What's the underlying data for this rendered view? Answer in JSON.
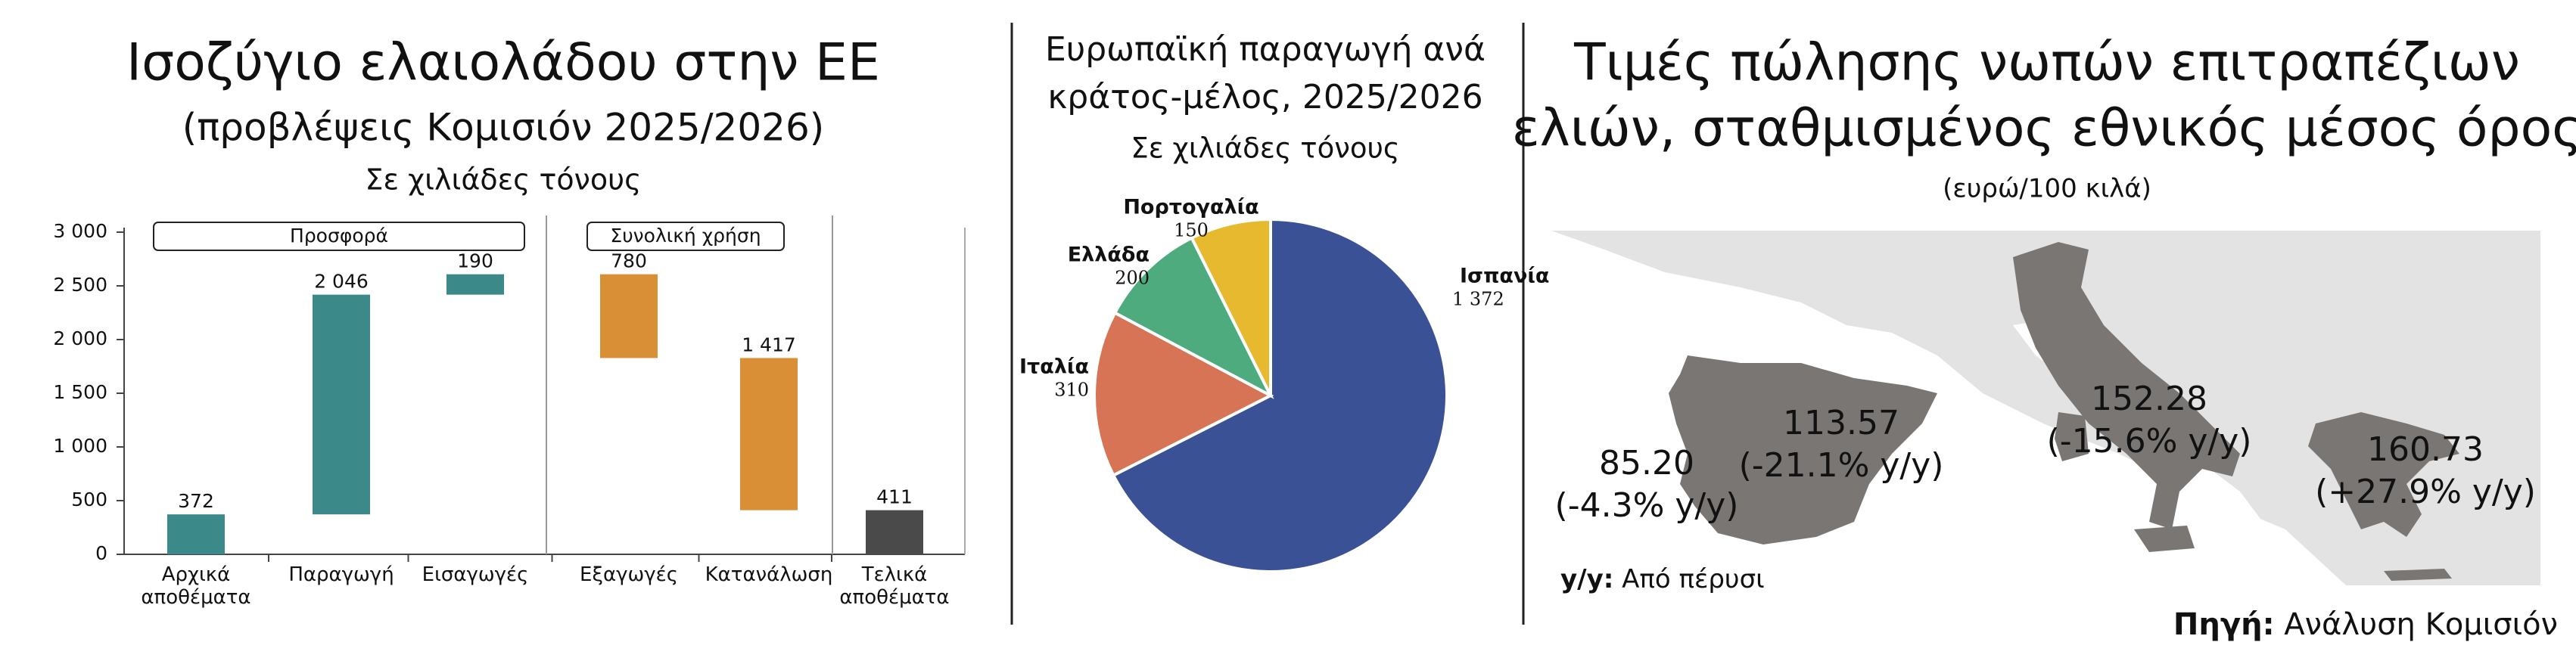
{
  "chart_data": [
    {
      "type": "waterfall",
      "title": "Ισοζύγιο ελαιολάδου στην ΕΕ",
      "subtitle": "(προβλέψεις Κομισιόν 2025/2026)",
      "unit": "Σε χιλιάδες τόνους",
      "categories": [
        "Αρχικά αποθέματα",
        "Παραγωγή",
        "Εισαγωγές",
        "Εξαγωγές",
        "Κατανάλωση",
        "Τελικά αποθέματα"
      ],
      "values": [
        372,
        2046,
        190,
        780,
        1417,
        411
      ],
      "value_labels": [
        "372",
        "2 046",
        "190",
        "780",
        "1 417",
        "411"
      ],
      "measure": [
        "total",
        "increase",
        "increase",
        "decrease",
        "decrease",
        "total"
      ],
      "colors": [
        "#3b8a89",
        "#3b8a89",
        "#3b8a89",
        "#d98f36",
        "#d98f36",
        "#4a4a4a"
      ],
      "groups": [
        {
          "label": "Προσφορά",
          "categories": [
            0,
            2
          ]
        },
        {
          "label": "Συνολική χρήση",
          "categories": [
            3,
            4
          ]
        }
      ],
      "ylim": [
        0,
        3000
      ],
      "yticks": [
        0,
        500,
        {
          "value": 1000,
          "label": "1 000"
        },
        {
          "value": 1500,
          "label": "1 500"
        },
        {
          "value": 2000,
          "label": "2 000"
        },
        {
          "value": 2500,
          "label": "2 500"
        },
        {
          "value": 3000,
          "label": "3 000"
        }
      ]
    },
    {
      "type": "pie",
      "title": [
        "Ευρωπαϊκή παραγωγή ανά",
        "κράτος-μέλος, 2025/2026"
      ],
      "unit": "Σε χιλιάδες τόνους",
      "categories": [
        "Ισπανία",
        "Ιταλία",
        "Ελλάδα",
        "Πορτογαλία"
      ],
      "values": [
        1372,
        310,
        200,
        150
      ],
      "value_labels": [
        "1 372",
        "310",
        "200",
        "150"
      ],
      "colors": [
        "#3a5196",
        "#d77455",
        "#4dab7e",
        "#e6b92e"
      ]
    }
  ],
  "map": {
    "title": [
      "Τιμές πώλησης νωπών επιτραπέζιων",
      "ελιών, σταθμισμένος εθνικός μέσος όρος"
    ],
    "subtitle": "(ευρώ/100 κιλά)",
    "regions": [
      {
        "price": "85.20",
        "change": "(-4.3% y/y)"
      },
      {
        "price": "113.57",
        "change": "(-21.1% y/y)"
      },
      {
        "price": "152.28",
        "change": "(-15.6% y/y)"
      },
      {
        "price": "160.73",
        "change": "(+27.9% y/y)"
      }
    ],
    "note": {
      "key": "y/y:",
      "text": "Από πέρυσι"
    },
    "source": {
      "key": "Πηγή:",
      "text": "Ανάλυση Κομισιόν"
    }
  }
}
